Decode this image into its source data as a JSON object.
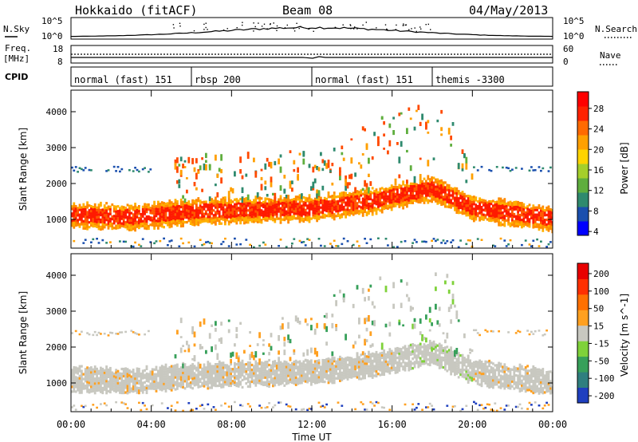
{
  "header": {
    "site": "Hokkaido (fitACF)",
    "beam": "Beam 08",
    "date": "04/May/2013"
  },
  "strip_nsky": {
    "label": "N.Sky",
    "right_label": "N.Search",
    "ticks_left": [
      "10^5",
      "10^0"
    ],
    "ticks_right": [
      "10^5",
      "10^0"
    ]
  },
  "strip_freq": {
    "label_line1": "Freq.",
    "label_line2": "[MHz]",
    "right_label": "Nave",
    "ticks_left": [
      "18",
      "8"
    ],
    "ticks_right": [
      "60",
      "0"
    ]
  },
  "cpid": {
    "label": "CPID",
    "segments": [
      {
        "text": "normal (fast) 151",
        "start": 0,
        "end": 6
      },
      {
        "text": "rbsp 200",
        "start": 6,
        "end": 12
      },
      {
        "text": "normal (fast) 151",
        "start": 12,
        "end": 18
      },
      {
        "text": "themis -3300",
        "start": 18,
        "end": 24
      }
    ]
  },
  "xaxis": {
    "title": "Time UT",
    "tick_labels": [
      "00:00",
      "04:00",
      "08:00",
      "12:00",
      "16:00",
      "20:00",
      "00:00"
    ]
  },
  "chart_data": [
    {
      "type": "heatmap",
      "panel": "power",
      "ylabel": "Slant Range [km]",
      "yticks": [
        1000,
        2000,
        3000,
        4000
      ],
      "ylim": [
        200,
        4600
      ],
      "xlim_hours": [
        0,
        24
      ],
      "colorbar": {
        "title": "Power [dB]",
        "tick_labels": [
          "28",
          "24",
          "20",
          "16",
          "12",
          "8",
          "4"
        ],
        "colors": [
          "#0000ff",
          "#1a4fae",
          "#2f8a6e",
          "#5fae3e",
          "#a5cf2b",
          "#ffd400",
          "#ffa000",
          "#ff6a00",
          "#ff2200",
          "#ff0000"
        ]
      },
      "bands": [
        {
          "name": "main echo band",
          "range_km": [
            [
              0,
              1150
            ],
            [
              3,
              1100
            ],
            [
              6,
              1250
            ],
            [
              9,
              1300
            ],
            [
              12,
              1350
            ],
            [
              15,
              1550
            ],
            [
              18,
              1900
            ],
            [
              20,
              1350
            ],
            [
              24,
              1050
            ]
          ],
          "color": "#ff3000"
        }
      ]
    },
    {
      "type": "heatmap",
      "panel": "velocity",
      "ylabel": "Slant Range [km]",
      "yticks": [
        1000,
        2000,
        3000,
        4000
      ],
      "ylim": [
        200,
        4600
      ],
      "xlim_hours": [
        0,
        24
      ],
      "colorbar": {
        "title": "Velocity [m s^-1]",
        "tick_labels": [
          "200",
          "100",
          "50",
          "15",
          "-15",
          "-50",
          "-100",
          "-200"
        ],
        "colors": [
          "#1f3fbf",
          "#2f7f7f",
          "#37a05a",
          "#7fd23a",
          "#c8c8c0",
          "#ffa020",
          "#ff7000",
          "#ff3000",
          "#e80000"
        ]
      }
    }
  ]
}
